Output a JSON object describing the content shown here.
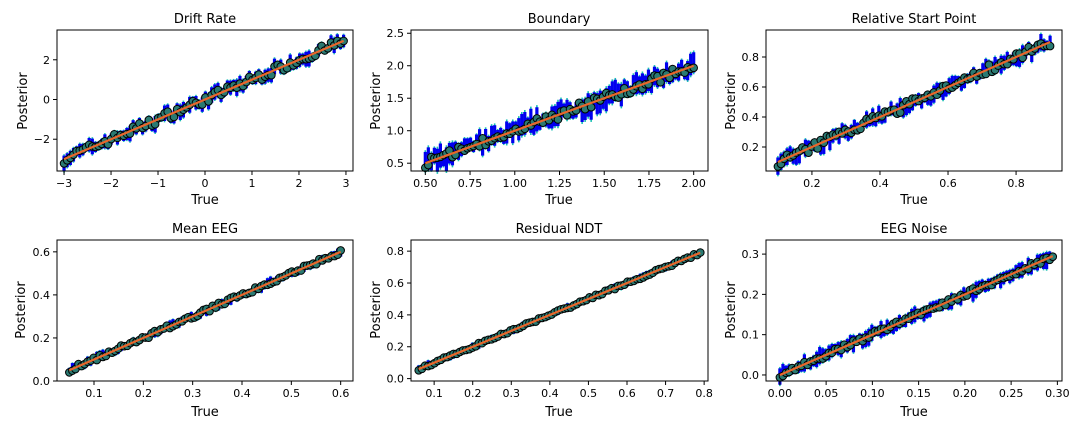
{
  "figure": {
    "colors": {
      "error_bar": "#0000ee",
      "ci_bar": "#17c0b3",
      "point": "#2a7a72",
      "point_edge": "#000000",
      "identity_line": "#e8662b"
    }
  },
  "chart_data": [
    {
      "type": "scatter",
      "title": "Drift Rate",
      "xlabel": "True",
      "ylabel": "Posterior",
      "xlim": [
        -3.15,
        3.15
      ],
      "ylim": [
        -3.6,
        3.5
      ],
      "xticks": [
        -3,
        -2,
        -1,
        0,
        1,
        2,
        3
      ],
      "xtick_labels": [
        "−3",
        "−2",
        "−1",
        "0",
        "1",
        "2",
        "3"
      ],
      "yticks": [
        -2,
        0,
        2
      ],
      "ytick_labels": [
        "−2",
        "0",
        "2"
      ],
      "points": {
        "x_min": -3.0,
        "x_max": 2.95,
        "count": 90,
        "error": 0.35,
        "error_ci": 0.12,
        "jitter": 0.22
      },
      "identity": [
        [
          -3.0,
          -3.0
        ],
        [
          2.95,
          2.95
        ]
      ]
    },
    {
      "type": "scatter",
      "title": "Boundary",
      "xlabel": "True",
      "ylabel": "Posterior",
      "xlim": [
        0.42,
        2.08
      ],
      "ylim": [
        0.38,
        2.55
      ],
      "xticks": [
        0.5,
        0.75,
        1.0,
        1.25,
        1.5,
        1.75,
        2.0
      ],
      "xtick_labels": [
        "0.50",
        "0.75",
        "1.00",
        "1.25",
        "1.50",
        "1.75",
        "2.00"
      ],
      "yticks": [
        0.5,
        1.0,
        1.5,
        2.0,
        2.5
      ],
      "ytick_labels": [
        "0.5",
        "1.0",
        "1.5",
        "2.0",
        "2.5"
      ],
      "points": {
        "x_min": 0.5,
        "x_max": 2.0,
        "count": 90,
        "error": 0.16,
        "error_ci": 0.06,
        "jitter": 0.07
      },
      "identity": [
        [
          0.5,
          0.5
        ],
        [
          2.0,
          2.0
        ]
      ]
    },
    {
      "type": "scatter",
      "title": "Relative Start Point",
      "xlabel": "True",
      "ylabel": "Posterior",
      "xlim": [
        0.065,
        0.935
      ],
      "ylim": [
        0.04,
        0.98
      ],
      "xticks": [
        0.2,
        0.4,
        0.6,
        0.8
      ],
      "xtick_labels": [
        "0.2",
        "0.4",
        "0.6",
        "0.8"
      ],
      "yticks": [
        0.2,
        0.4,
        0.6,
        0.8
      ],
      "ytick_labels": [
        "0.2",
        "0.4",
        "0.6",
        "0.8"
      ],
      "points": {
        "x_min": 0.1,
        "x_max": 0.9,
        "count": 90,
        "error": 0.05,
        "error_ci": 0.018,
        "jitter": 0.03
      },
      "identity": [
        [
          0.1,
          0.1
        ],
        [
          0.9,
          0.9
        ]
      ]
    },
    {
      "type": "scatter",
      "title": "Mean EEG",
      "xlabel": "True",
      "ylabel": "Posterior",
      "xlim": [
        0.025,
        0.625
      ],
      "ylim": [
        0.0,
        0.655
      ],
      "xticks": [
        0.1,
        0.2,
        0.3,
        0.4,
        0.5,
        0.6
      ],
      "xtick_labels": [
        "0.1",
        "0.2",
        "0.3",
        "0.4",
        "0.5",
        "0.6"
      ],
      "yticks": [
        0.0,
        0.2,
        0.4,
        0.6
      ],
      "ytick_labels": [
        "0.0",
        "0.2",
        "0.4",
        "0.6"
      ],
      "points": {
        "x_min": 0.05,
        "x_max": 0.6,
        "count": 90,
        "error": 0.018,
        "error_ci": 0.007,
        "jitter": 0.01
      },
      "identity": [
        [
          0.05,
          0.05
        ],
        [
          0.6,
          0.6
        ]
      ]
    },
    {
      "type": "scatter",
      "title": "Residual NDT",
      "xlabel": "True",
      "ylabel": "Posterior",
      "xlim": [
        0.04,
        0.81
      ],
      "ylim": [
        -0.015,
        0.87
      ],
      "xticks": [
        0.1,
        0.2,
        0.3,
        0.4,
        0.5,
        0.6,
        0.7,
        0.8
      ],
      "xtick_labels": [
        "0.1",
        "0.2",
        "0.3",
        "0.4",
        "0.5",
        "0.6",
        "0.7",
        "0.8"
      ],
      "yticks": [
        0.0,
        0.2,
        0.4,
        0.6,
        0.8
      ],
      "ytick_labels": [
        "0.0",
        "0.2",
        "0.4",
        "0.6",
        "0.8"
      ],
      "points": {
        "x_min": 0.06,
        "x_max": 0.79,
        "count": 90,
        "error": 0.02,
        "error_ci": 0.008,
        "jitter": 0.008
      },
      "identity": [
        [
          0.06,
          0.06
        ],
        [
          0.79,
          0.79
        ]
      ]
    },
    {
      "type": "scatter",
      "title": "EEG Noise",
      "xlabel": "True",
      "ylabel": "Posterior",
      "xlim": [
        -0.015,
        0.305
      ],
      "ylim": [
        -0.015,
        0.335
      ],
      "xticks": [
        0.0,
        0.05,
        0.1,
        0.15,
        0.2,
        0.25,
        0.3
      ],
      "xtick_labels": [
        "0.00",
        "0.05",
        "0.10",
        "0.15",
        "0.20",
        "0.25",
        "0.30"
      ],
      "yticks": [
        0.0,
        0.1,
        0.2,
        0.3
      ],
      "ytick_labels": [
        "0.0",
        "0.1",
        "0.2",
        "0.3"
      ],
      "points": {
        "x_min": 0.0,
        "x_max": 0.295,
        "count": 90,
        "error": 0.018,
        "error_ci": 0.006,
        "jitter": 0.006
      },
      "identity": [
        [
          0.0,
          0.0
        ],
        [
          0.295,
          0.295
        ]
      ]
    }
  ]
}
